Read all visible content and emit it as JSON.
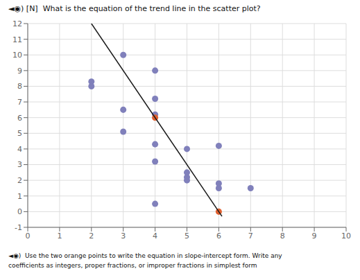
{
  "chart_data": {
    "type": "scatter",
    "title": "◄◉) [N]  What is the equation of the trend line in the scatter plot?",
    "subtitle": "◄◉)  Use the two orange points to write the equation in slope-intercept form. Write any\ncoefficients as integers, proper fractions, or improper fractions in simplest form",
    "xlim": [
      0,
      10
    ],
    "ylim": [
      -1,
      12
    ],
    "xticks": [
      0,
      1,
      2,
      3,
      4,
      5,
      6,
      7,
      8,
      9,
      10
    ],
    "yticks": [
      -1,
      0,
      1,
      2,
      3,
      4,
      5,
      6,
      7,
      8,
      9,
      10,
      11,
      12
    ],
    "grid": true,
    "series": [
      {
        "type": "scatter",
        "color": "#8080bb",
        "x": [
          3,
          2,
          2,
          4,
          4,
          3,
          4,
          3,
          4,
          4,
          5,
          5,
          5,
          4,
          6,
          5,
          6,
          6,
          7
        ],
        "values": [
          10,
          8,
          8.3,
          9,
          7.2,
          6.5,
          6.2,
          5.1,
          4.3,
          3.2,
          2.5,
          2.0,
          2.2,
          0.5,
          4.2,
          4.0,
          1.8,
          1.5,
          1.5
        ]
      },
      {
        "type": "scatter",
        "color": "#e06030",
        "x": [
          4,
          6
        ],
        "values": [
          6,
          0
        ]
      },
      {
        "type": "line",
        "color": "#1a1a1a",
        "x": [
          2.0,
          6.1
        ],
        "values": [
          12.0,
          -0.3
        ]
      }
    ]
  }
}
